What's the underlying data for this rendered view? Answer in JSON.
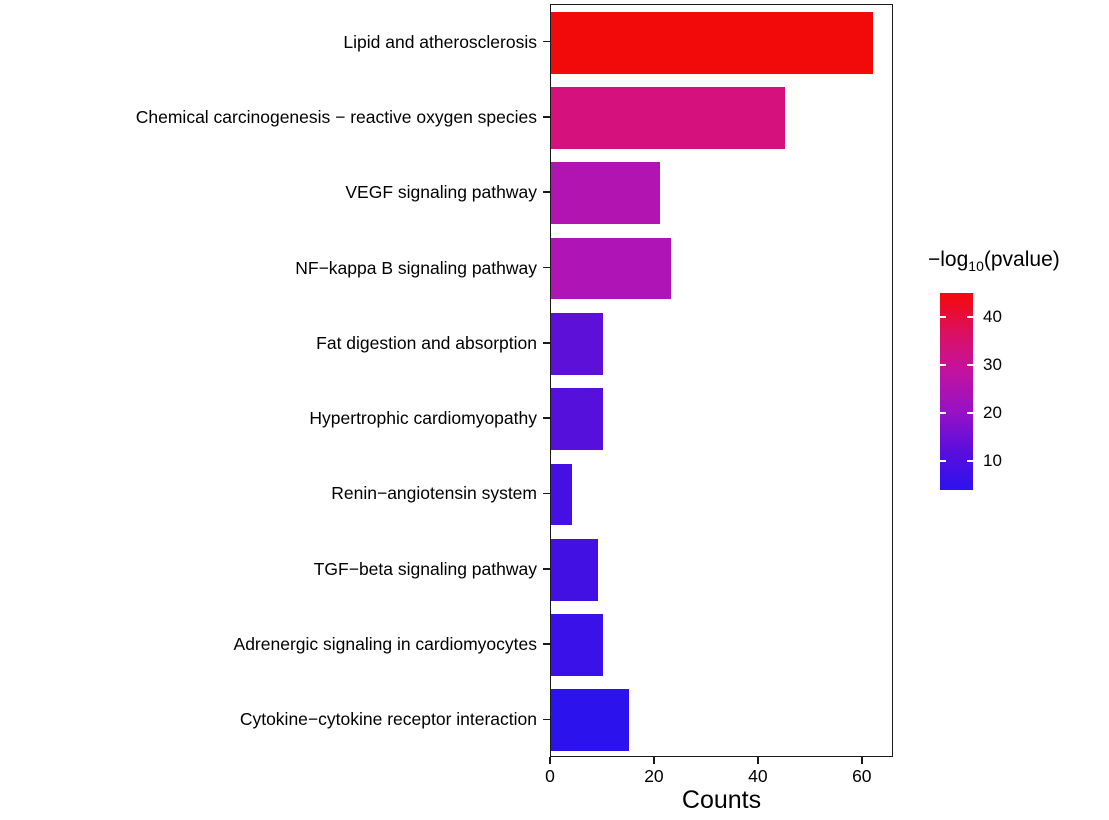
{
  "chart_data": {
    "type": "bar",
    "orientation": "horizontal",
    "title": "",
    "xlabel": "Counts",
    "ylabel": "",
    "xlim": [
      0,
      66
    ],
    "xticks": [
      0,
      20,
      40,
      60
    ],
    "grid": false,
    "categories": [
      "Lipid and atherosclerosis",
      "Chemical carcinogenesis − reactive oxygen species",
      "VEGF signaling pathway",
      "NF−kappa B signaling pathway",
      "Fat digestion and absorption",
      "Hypertrophic cardiomyopathy",
      "Renin−angiotensin system",
      "TGF−beta signaling pathway",
      "Adrenergic signaling in cardiomyocytes",
      "Cytokine−cytokine receptor interaction"
    ],
    "values": [
      62,
      45,
      21,
      23,
      10,
      10,
      4,
      9,
      10,
      15
    ],
    "color_values": [
      45,
      30,
      20,
      20,
      10,
      10,
      8,
      8,
      7,
      5
    ],
    "bar_colors": [
      "#f20909",
      "#d4117d",
      "#b214b2",
      "#ae14b6",
      "#5c10d8",
      "#5510dc",
      "#4410e3",
      "#4310e4",
      "#3a11e8",
      "#2c13ee"
    ],
    "legend": {
      "title_prefix": "−log",
      "title_sub": "10",
      "title_suffix": "(pvalue)",
      "position": "right",
      "domain": [
        4,
        45
      ],
      "ticks": [
        40,
        30,
        20,
        10
      ],
      "gradient_top_to_bottom": [
        "#f50909",
        "#dc1060",
        "#c213a0",
        "#9712c4",
        "#5b0edd",
        "#2d12ee"
      ]
    }
  }
}
